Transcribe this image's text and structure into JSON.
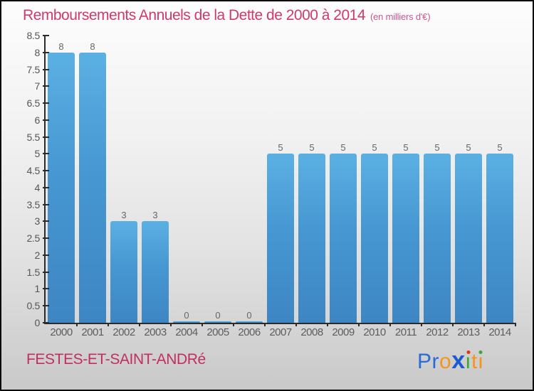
{
  "header": {
    "title": "Remboursements Annuels de la Dette de 2000 à 2014",
    "subtitle": "(en milliers d'€)",
    "title_color": "#d0396b",
    "subtitle_color": "#c9578f"
  },
  "chart_data": {
    "type": "bar",
    "title": "Remboursements Annuels de la Dette de 2000 à 2014",
    "units_label": "(en milliers d'€)",
    "categories": [
      "2000",
      "2001",
      "2002",
      "2003",
      "2004",
      "2005",
      "2006",
      "2007",
      "2008",
      "2009",
      "2010",
      "2011",
      "2012",
      "2013",
      "2014"
    ],
    "values": [
      8,
      8,
      3,
      3,
      0,
      0,
      0,
      5,
      5,
      5,
      5,
      5,
      5,
      5,
      5
    ],
    "ylim": [
      0,
      8.5
    ],
    "ytick_labels": [
      "0",
      "0.5",
      "1",
      "1.5",
      "2",
      "2.5",
      "3",
      "3.5",
      "4",
      "4.5",
      "5",
      "5.5",
      "6",
      "6.5",
      "7",
      "7.5",
      "8",
      "8.5"
    ],
    "grid": false,
    "legend": "none",
    "value_labels_shown": true,
    "bar_color_top": "#5bb0e3",
    "bar_color_bottom": "#3d86c3",
    "axis_color": "#2b2b2b"
  },
  "footer": {
    "commune": "FESTES-ET-SAINT-ANDRé",
    "commune_color": "#c22e62",
    "logo": {
      "name": "Proxiti",
      "letters": [
        {
          "ch": "P",
          "color": "#2a6bd6"
        },
        {
          "ch": "r",
          "color": "#2a6bd6"
        },
        {
          "ch": "o",
          "color": "#f7941d"
        },
        {
          "ch": "x",
          "color": "#1d5ad0",
          "big": true
        },
        {
          "ch": "i",
          "stem": "#3aaa35",
          "dot": "#e63312"
        },
        {
          "ch": "t",
          "color": "#f7941d"
        },
        {
          "ch": "i",
          "stem": "#f7941d",
          "dot": "#3aaa35"
        }
      ]
    }
  }
}
